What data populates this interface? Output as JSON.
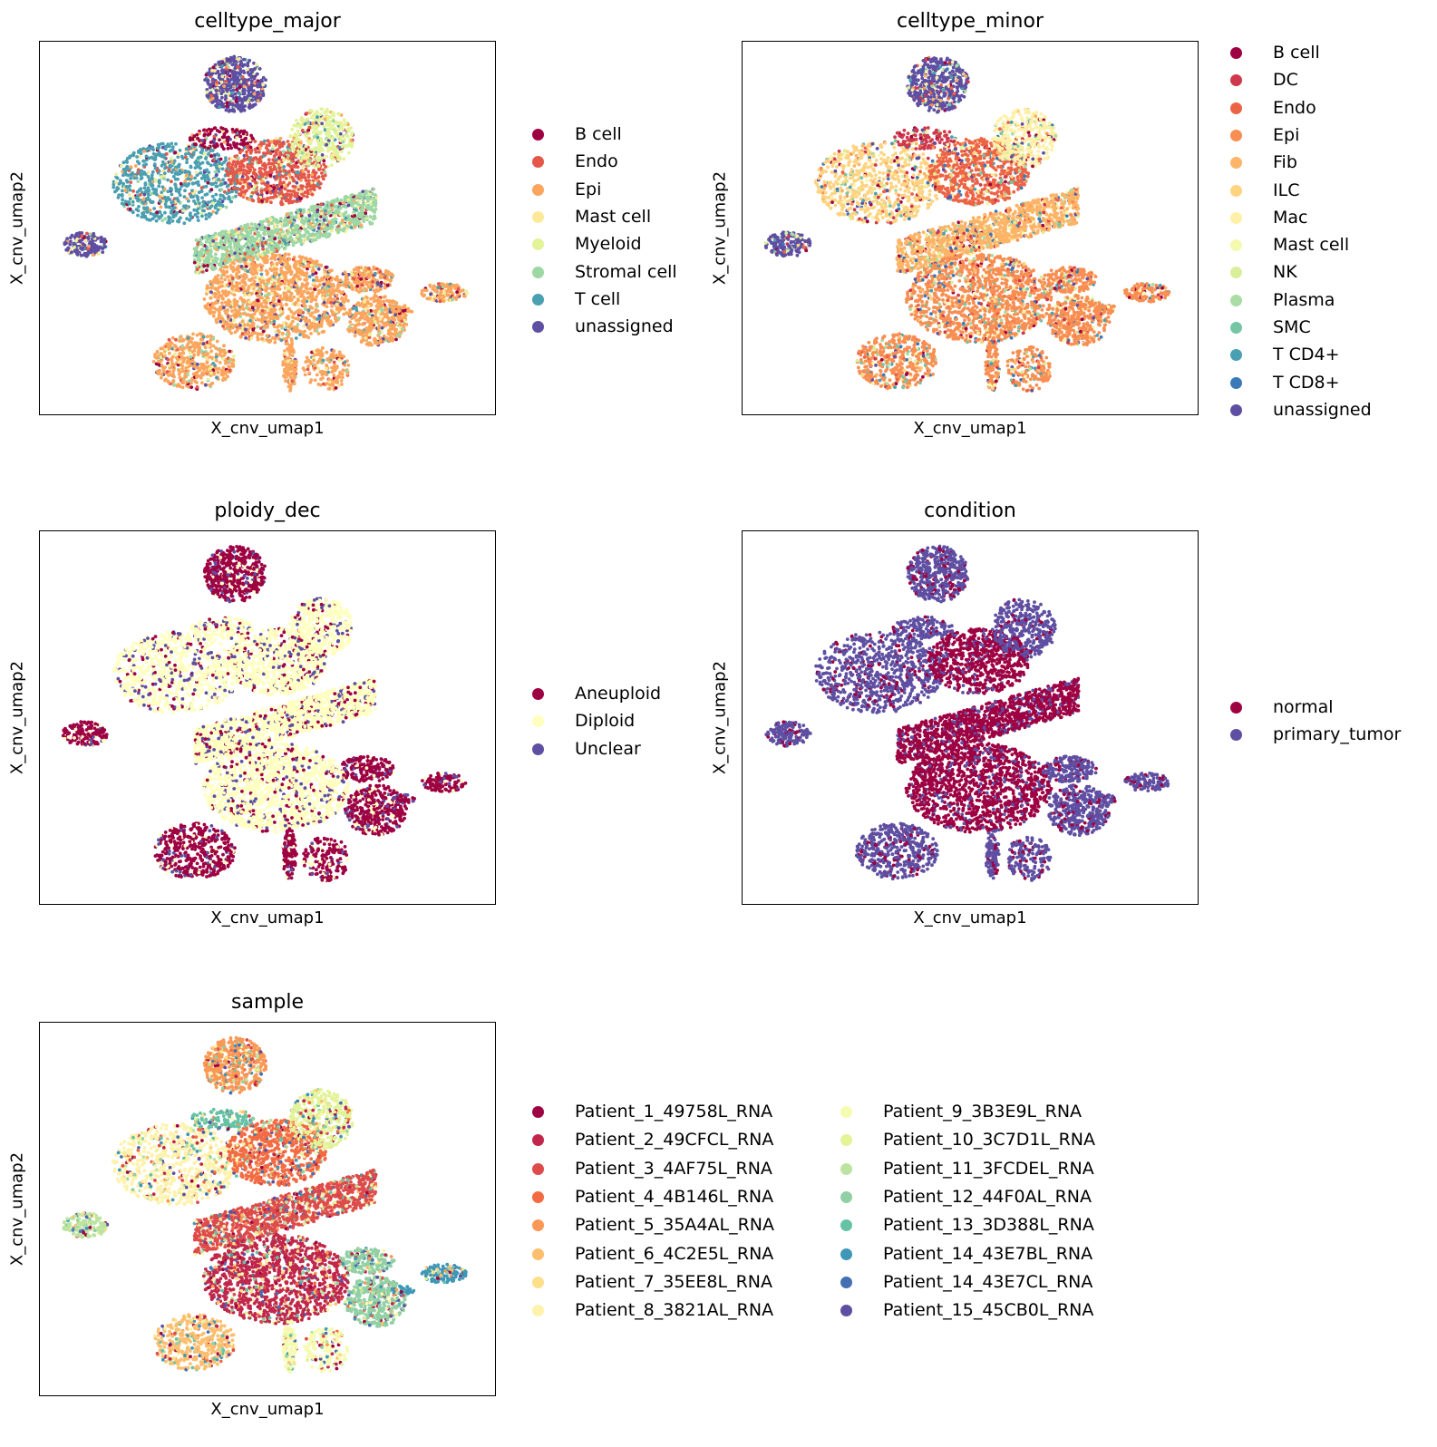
{
  "chart_data": [
    {
      "type": "scatter",
      "title": "celltype_major",
      "xlabel": "X_cnv_umap1",
      "ylabel": "X_cnv_umap2",
      "legend_placement": "right",
      "grid": false,
      "series": [
        {
          "name": "B cell",
          "color": "#9e0142"
        },
        {
          "name": "Endo",
          "color": "#e55748"
        },
        {
          "name": "Epi",
          "color": "#fca55d"
        },
        {
          "name": "Mast cell",
          "color": "#fee999"
        },
        {
          "name": "Myeloid",
          "color": "#e3f399"
        },
        {
          "name": "Stromal cell",
          "color": "#9dd7a4"
        },
        {
          "name": "T cell",
          "color": "#4a9fb1"
        },
        {
          "name": "unassigned",
          "color": "#5e4fa2"
        }
      ],
      "region_colors": {
        "top": "unassigned",
        "left": "unassigned",
        "upper_left": "T cell",
        "upper_center": "Endo",
        "upper_right": "Myeloid",
        "mid_band": "Stromal cell",
        "lower_center": "Epi",
        "lower_right_blob": "Epi",
        "bottom_left": "Epi",
        "bottom_tails": "Epi",
        "right_small": "Epi",
        "top_strip": "B cell"
      }
    },
    {
      "type": "scatter",
      "title": "celltype_minor",
      "xlabel": "X_cnv_umap1",
      "ylabel": "X_cnv_umap2",
      "legend_placement": "right",
      "grid": false,
      "series": [
        {
          "name": "B cell",
          "color": "#9e0142"
        },
        {
          "name": "DC",
          "color": "#cf384d"
        },
        {
          "name": "Endo",
          "color": "#ed6345"
        },
        {
          "name": "Epi",
          "color": "#f98e52"
        },
        {
          "name": "Fib",
          "color": "#fdb466"
        },
        {
          "name": "ILC",
          "color": "#fed481"
        },
        {
          "name": "Mac",
          "color": "#fef0a7"
        },
        {
          "name": "Mast cell",
          "color": "#f3fab0"
        },
        {
          "name": "NK",
          "color": "#d9ef9b"
        },
        {
          "name": "Plasma",
          "color": "#aadca4"
        },
        {
          "name": "SMC",
          "color": "#76c6a6"
        },
        {
          "name": "T CD4+",
          "color": "#48a0b2"
        },
        {
          "name": "T CD8+",
          "color": "#3a7ab8"
        },
        {
          "name": "unassigned",
          "color": "#5e4fa2"
        }
      ],
      "region_colors": {
        "top": "unassigned",
        "left": "unassigned",
        "upper_left": "ILC",
        "upper_center": "Endo",
        "upper_right": "Mac",
        "mid_band": "Fib",
        "lower_center": "Epi",
        "lower_right_blob": "Epi",
        "bottom_left": "Epi",
        "bottom_tails": "Epi",
        "right_small": "Epi",
        "top_strip": "DC"
      }
    },
    {
      "type": "scatter",
      "title": "ploidy_dec",
      "xlabel": "X_cnv_umap1",
      "ylabel": "X_cnv_umap2",
      "legend_placement": "right",
      "grid": false,
      "series": [
        {
          "name": "Aneuploid",
          "color": "#9e0142"
        },
        {
          "name": "Diploid",
          "color": "#ffffbf"
        },
        {
          "name": "Unclear",
          "color": "#5e4fa2"
        }
      ],
      "region_colors": {
        "top": "Aneuploid",
        "left": "Aneuploid",
        "upper_left": "Diploid",
        "upper_center": "Diploid",
        "upper_right": "Diploid",
        "mid_band": "Diploid",
        "lower_center": "Diploid",
        "lower_right_blob": "Aneuploid",
        "bottom_left": "Aneuploid",
        "bottom_tails": "Aneuploid",
        "right_small": "Aneuploid",
        "top_strip": "Diploid"
      }
    },
    {
      "type": "scatter",
      "title": "condition",
      "xlabel": "X_cnv_umap1",
      "ylabel": "X_cnv_umap2",
      "legend_placement": "right",
      "grid": false,
      "series": [
        {
          "name": "normal",
          "color": "#9e0142"
        },
        {
          "name": "primary_tumor",
          "color": "#5e4fa2"
        }
      ],
      "region_colors": {
        "top": "primary_tumor",
        "left": "primary_tumor",
        "upper_left": "primary_tumor",
        "upper_center": "normal",
        "upper_right": "primary_tumor",
        "mid_band": "normal",
        "lower_center": "normal",
        "lower_right_blob": "primary_tumor",
        "bottom_left": "primary_tumor",
        "bottom_tails": "primary_tumor",
        "right_small": "primary_tumor",
        "top_strip": "primary_tumor"
      }
    },
    {
      "type": "scatter",
      "title": "sample",
      "xlabel": "X_cnv_umap1",
      "ylabel": "X_cnv_umap2",
      "legend_placement": "right",
      "grid": false,
      "series": [
        {
          "name": "Patient_1_49758L_RNA",
          "color": "#9e0142"
        },
        {
          "name": "Patient_2_49CFCL_RNA",
          "color": "#c1274a"
        },
        {
          "name": "Patient_3_4AF75L_RNA",
          "color": "#de4b4b"
        },
        {
          "name": "Patient_4_4B146L_RNA",
          "color": "#f36b43"
        },
        {
          "name": "Patient_5_35A4AL_RNA",
          "color": "#fa9856"
        },
        {
          "name": "Patient_6_4C2E5L_RNA",
          "color": "#fdbe6e"
        },
        {
          "name": "Patient_7_35EE8L_RNA",
          "color": "#fedf8b"
        },
        {
          "name": "Patient_8_3821AL_RNA",
          "color": "#fff2ac"
        },
        {
          "name": "Patient_9_3B3E9L_RNA",
          "color": "#f6fbb2"
        },
        {
          "name": "Patient_10_3C7D1L_RNA",
          "color": "#e3f397"
        },
        {
          "name": "Patient_11_3FCDEL_RNA",
          "color": "#bce4a0"
        },
        {
          "name": "Patient_12_44F0AL_RNA",
          "color": "#90d0a4"
        },
        {
          "name": "Patient_13_3D388L_RNA",
          "color": "#66c2a5"
        },
        {
          "name": "Patient_14_43E7BL_RNA",
          "color": "#3f97b7"
        },
        {
          "name": "Patient_14_43E7CL_RNA",
          "color": "#4470b1"
        },
        {
          "name": "Patient_15_45CB0L_RNA",
          "color": "#5e4fa2"
        }
      ],
      "region_colors": {
        "top": "Patient_5_35A4AL_RNA",
        "left": "Patient_11_3FCDEL_RNA",
        "upper_left": "Patient_8_3821AL_RNA",
        "upper_center": "Patient_4_4B146L_RNA",
        "upper_right": "Patient_10_3C7D1L_RNA",
        "mid_band": "Patient_3_4AF75L_RNA",
        "lower_center": "Patient_2_49CFCL_RNA",
        "lower_right_blob": "Patient_12_44F0AL_RNA",
        "bottom_left": "Patient_6_4C2E5L_RNA",
        "bottom_tails": "Patient_9_3B3E9L_RNA",
        "right_small": "Patient_14_43E7BL_RNA",
        "top_strip": "Patient_13_3D388L_RNA"
      }
    }
  ]
}
